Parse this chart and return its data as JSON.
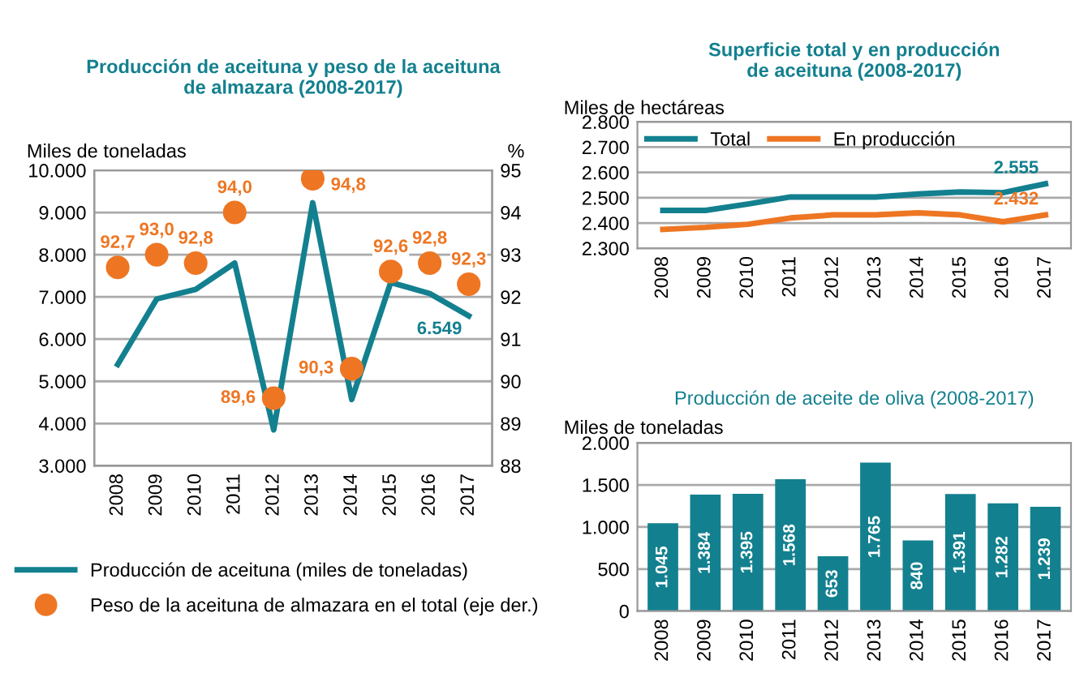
{
  "chart_data": [
    {
      "type": "line",
      "title": "Producción de aceituna y peso de la aceituna\nde almazara (2008-2017)",
      "ylabel": "Miles de toneladas",
      "y2label": "%",
      "categories": [
        "2008",
        "2009",
        "2010",
        "2011",
        "2012",
        "2013",
        "2014",
        "2015",
        "2016",
        "2017"
      ],
      "series": [
        {
          "name": "Producción de aceituna (miles de toneladas)",
          "type": "line",
          "color": "#13808f",
          "values": [
            5400,
            6950,
            7180,
            7800,
            3850,
            9230,
            4570,
            7340,
            7080,
            6549
          ],
          "value_labels": [
            null,
            null,
            null,
            null,
            null,
            null,
            null,
            null,
            null,
            "6.549"
          ]
        },
        {
          "name": "Peso de la aceituna de almazara en el total (eje der.)",
          "type": "scatter",
          "axis": "y2",
          "marker": "circle",
          "color": "#ee7623",
          "values": [
            92.7,
            93.0,
            92.8,
            94.0,
            89.6,
            94.8,
            90.3,
            92.6,
            92.8,
            92.3
          ],
          "value_labels": [
            "92,7",
            "93,0",
            "92,8",
            "94,0",
            "89,6",
            "94,8",
            "90,3",
            "92,6",
            "92,8",
            "92,3"
          ]
        }
      ],
      "ylim": [
        3000,
        10000
      ],
      "yticks": [
        {
          "value": 3000,
          "label": "3.000"
        },
        {
          "value": 4000,
          "label": "4.000"
        },
        {
          "value": 5000,
          "label": "5.000"
        },
        {
          "value": 6000,
          "label": "6.000"
        },
        {
          "value": 7000,
          "label": "7.000"
        },
        {
          "value": 8000,
          "label": "8.000"
        },
        {
          "value": 9000,
          "label": "9.000"
        },
        {
          "value": 10000,
          "label": "10.000"
        }
      ],
      "y2lim": [
        88,
        95
      ],
      "y2ticks": [
        88,
        89,
        90,
        91,
        92,
        93,
        94,
        95
      ],
      "grid": "y",
      "legend": "bottom"
    },
    {
      "type": "line",
      "title": "Superficie total y en producción\nde aceituna (2008-2017)",
      "ylabel": "Miles de hectáreas",
      "categories": [
        "2008",
        "2009",
        "2010",
        "2011",
        "2012",
        "2013",
        "2014",
        "2015",
        "2016",
        "2017"
      ],
      "series": [
        {
          "name": "Total",
          "color": "#13808f",
          "values": [
            2450,
            2450,
            2475,
            2503,
            2503,
            2503,
            2515,
            2523,
            2520,
            2555
          ],
          "value_labels": [
            null,
            null,
            null,
            null,
            null,
            null,
            null,
            null,
            null,
            "2.555"
          ]
        },
        {
          "name": "En producción",
          "color": "#ee7623",
          "values": [
            2375,
            2383,
            2395,
            2420,
            2432,
            2432,
            2440,
            2432,
            2405,
            2432
          ],
          "value_labels": [
            null,
            null,
            null,
            null,
            null,
            null,
            null,
            null,
            null,
            "2.432"
          ]
        }
      ],
      "ylim": [
        2300,
        2800
      ],
      "yticks": [
        {
          "value": 2300,
          "label": "2.300"
        },
        {
          "value": 2400,
          "label": "2.400"
        },
        {
          "value": 2500,
          "label": "2.500"
        },
        {
          "value": 2600,
          "label": "2.600"
        },
        {
          "value": 2700,
          "label": "2.700"
        },
        {
          "value": 2800,
          "label": "2.800"
        }
      ],
      "grid": "y",
      "legend": "top left"
    },
    {
      "type": "bar",
      "title": "Producción de aceite de oliva (2008-2017)",
      "ylabel": "Miles de toneladas",
      "categories": [
        "2008",
        "2009",
        "2010",
        "2011",
        "2012",
        "2013",
        "2014",
        "2015",
        "2016",
        "2017"
      ],
      "values": [
        1045,
        1384,
        1395,
        1568,
        653,
        1765,
        840,
        1391,
        1282,
        1239
      ],
      "color": "#13808f",
      "value_labels": [
        "1.045",
        "1.384",
        "1.395",
        "1.568",
        "653",
        "1.765",
        "840",
        "1.391",
        "1.282",
        "1.239"
      ],
      "ylim": [
        0,
        2000
      ],
      "yticks": [
        0,
        500,
        {
          "value": 1000,
          "label": "1.000"
        },
        {
          "value": 1500,
          "label": "1.500"
        },
        {
          "value": 2000,
          "label": "2.000"
        }
      ],
      "grid": "y"
    }
  ]
}
